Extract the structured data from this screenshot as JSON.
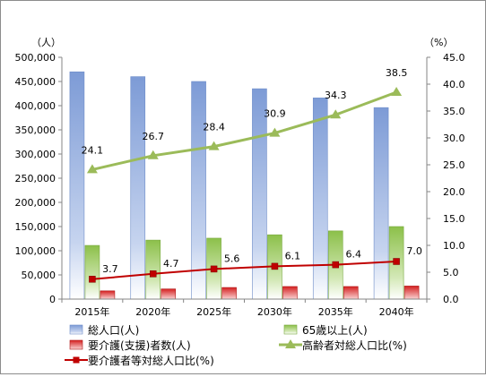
{
  "chart_data": {
    "type": "bar",
    "categories": [
      "2015年",
      "2020年",
      "2025年",
      "2030年",
      "2035年",
      "2040年"
    ],
    "y_left": {
      "unit_label": "（人）",
      "ylim": [
        0,
        500000
      ],
      "ticks": [
        "0",
        "50,000",
        "100,000",
        "150,000",
        "200,000",
        "250,000",
        "300,000",
        "350,000",
        "400,000",
        "450,000",
        "500,000"
      ]
    },
    "y_right": {
      "unit_label": "（%）",
      "ylim": [
        0,
        45
      ],
      "ticks": [
        "0.0",
        "5.0",
        "10.0",
        "15.0",
        "20.0",
        "25.0",
        "30.0",
        "35.0",
        "40.0",
        "45.0"
      ]
    },
    "series": [
      {
        "name": "総人口(人)",
        "kind": "bar",
        "axis": "left",
        "color": "#7f9fd8",
        "values": [
          470000,
          460000,
          450000,
          435000,
          416000,
          396000
        ]
      },
      {
        "name": "65歳以上(人)",
        "kind": "bar",
        "axis": "left",
        "color": "#8cc04a",
        "values": [
          111000,
          122000,
          126000,
          133000,
          141000,
          150000
        ]
      },
      {
        "name": "要介護(支援)者数(人)",
        "kind": "bar",
        "axis": "left",
        "color": "#d42020",
        "values": [
          17000,
          21000,
          24000,
          26000,
          26000,
          27000
        ]
      },
      {
        "name": "高齢者対総人口比(%)",
        "kind": "line",
        "axis": "right",
        "color": "#9bbb59",
        "marker": "triangle",
        "values": [
          24.1,
          26.7,
          28.4,
          30.9,
          34.3,
          38.5
        ],
        "labels": [
          "24.1",
          "26.7",
          "28.4",
          "30.9",
          "34.3",
          "38.5"
        ]
      },
      {
        "name": "要介護者等対総人口比(%)",
        "kind": "line",
        "axis": "right",
        "color": "#c00000",
        "marker": "square",
        "values": [
          3.7,
          4.7,
          5.6,
          6.1,
          6.4,
          7.0
        ],
        "labels": [
          "3.7",
          "4.7",
          "5.6",
          "6.1",
          "6.4",
          "7.0"
        ]
      }
    ],
    "grid": false,
    "legend_position": "bottom"
  }
}
